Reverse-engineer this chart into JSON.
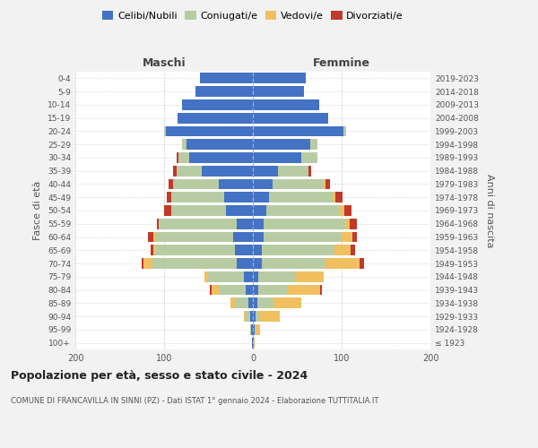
{
  "age_groups": [
    "100+",
    "95-99",
    "90-94",
    "85-89",
    "80-84",
    "75-79",
    "70-74",
    "65-69",
    "60-64",
    "55-59",
    "50-54",
    "45-49",
    "40-44",
    "35-39",
    "30-34",
    "25-29",
    "20-24",
    "15-19",
    "10-14",
    "5-9",
    "0-4"
  ],
  "birth_years": [
    "≤ 1923",
    "1924-1928",
    "1929-1933",
    "1934-1938",
    "1939-1943",
    "1944-1948",
    "1949-1953",
    "1954-1958",
    "1959-1963",
    "1964-1968",
    "1969-1973",
    "1974-1978",
    "1979-1983",
    "1984-1988",
    "1989-1993",
    "1994-1998",
    "1999-2003",
    "2004-2008",
    "2009-2013",
    "2014-2018",
    "2019-2023"
  ],
  "males": {
    "celibe": [
      1,
      2,
      3,
      5,
      8,
      10,
      18,
      20,
      22,
      18,
      30,
      32,
      38,
      58,
      72,
      75,
      98,
      85,
      80,
      65,
      60
    ],
    "coniugato": [
      0,
      1,
      5,
      15,
      30,
      42,
      95,
      90,
      88,
      88,
      62,
      60,
      52,
      28,
      12,
      5,
      2,
      0,
      0,
      0,
      0
    ],
    "vedovo": [
      0,
      0,
      2,
      5,
      8,
      3,
      10,
      2,
      2,
      0,
      0,
      0,
      0,
      0,
      0,
      0,
      0,
      0,
      0,
      0,
      0
    ],
    "divorziato": [
      0,
      0,
      0,
      0,
      2,
      0,
      2,
      3,
      6,
      2,
      8,
      5,
      5,
      4,
      2,
      0,
      0,
      0,
      0,
      0,
      0
    ]
  },
  "females": {
    "nubile": [
      1,
      2,
      3,
      5,
      6,
      6,
      10,
      10,
      12,
      12,
      15,
      18,
      22,
      28,
      55,
      65,
      102,
      85,
      75,
      58,
      60
    ],
    "coniugata": [
      0,
      1,
      5,
      18,
      32,
      42,
      72,
      82,
      88,
      92,
      82,
      72,
      58,
      35,
      18,
      8,
      3,
      0,
      0,
      0,
      0
    ],
    "vedova": [
      1,
      5,
      22,
      32,
      38,
      32,
      38,
      18,
      12,
      5,
      6,
      3,
      2,
      0,
      0,
      0,
      0,
      0,
      0,
      0,
      0
    ],
    "divorziata": [
      0,
      0,
      0,
      0,
      2,
      0,
      5,
      5,
      5,
      8,
      8,
      8,
      5,
      3,
      0,
      0,
      0,
      0,
      0,
      0,
      0
    ]
  },
  "colors": {
    "celibe": "#4472c4",
    "coniugato": "#b8cca4",
    "vedovo": "#f0c060",
    "divorziato": "#c0392b"
  },
  "legend_labels": [
    "Celibi/Nubili",
    "Coniugati/e",
    "Vedovi/e",
    "Divorziati/e"
  ],
  "title": "Popolazione per età, sesso e stato civile - 2024",
  "subtitle": "COMUNE DI FRANCAVILLA IN SINNI (PZ) - Dati ISTAT 1° gennaio 2024 - Elaborazione TUTTITALIA.IT",
  "ylabel_left": "Fasce di età",
  "ylabel_right": "Anni di nascita",
  "maschi_label": "Maschi",
  "femmine_label": "Femmine",
  "xlim": 200,
  "bg_color": "#f2f2f2",
  "plot_bg_color": "#ffffff"
}
